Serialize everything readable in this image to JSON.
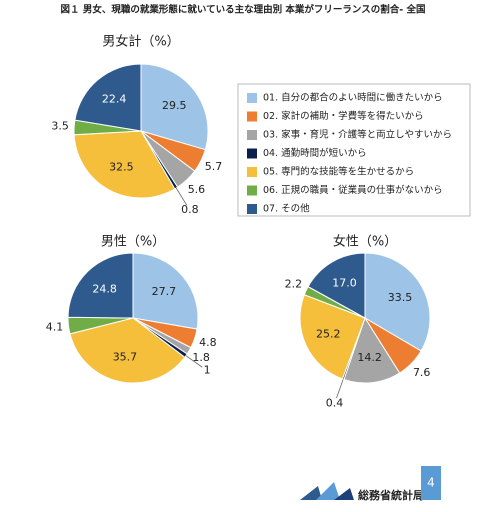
{
  "title": "図１ 男女、現職の就業形態に就いている主な理由別 本業がフリーランスの割合- 全国",
  "legend": {
    "categories": [
      "01. 自分の都合のよい時間に働きたいから",
      "02. 家計の補助・学費等を得たいから",
      "03. 家事・育児・介護等と両立しやすいから",
      "04. 通勤時間が短いから",
      "05. 専門的な技能等を生かせるから",
      "06. 正規の職員・従業員の仕事がないから",
      "07. その他"
    ],
    "colors": [
      "#9dc3e6",
      "#ed7d31",
      "#a5a5a5",
      "#0b1f4f",
      "#f5bf3c",
      "#70ad47",
      "#2f5a8e"
    ]
  },
  "chart_data": [
    {
      "type": "pie",
      "title": "男女計（%）",
      "values": [
        29.5,
        5.7,
        5.6,
        0.8,
        32.5,
        3.5,
        22.4
      ]
    },
    {
      "type": "pie",
      "title": "男性（%）",
      "values": [
        27.7,
        4.8,
        1.8,
        1.0,
        35.7,
        4.1,
        24.8
      ]
    },
    {
      "type": "pie",
      "title": "女性（%）",
      "values": [
        33.5,
        7.6,
        14.2,
        0.4,
        25.2,
        2.2,
        17
      ],
      "value_labels": [
        "33.5",
        "7.6",
        "14.2",
        "0.4",
        "25.2",
        "2.2",
        "17.0"
      ]
    }
  ],
  "footer": {
    "org": "総務省統計局",
    "page": "4"
  }
}
